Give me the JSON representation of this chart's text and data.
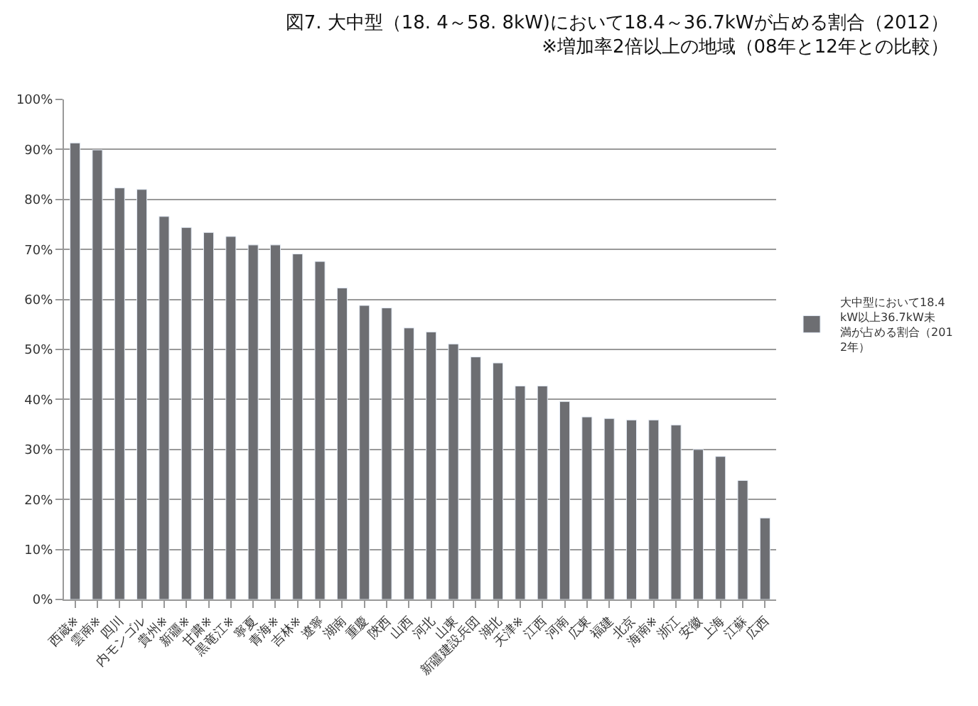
{
  "chart_data": {
    "type": "bar",
    "title": "図7. 大中型（18. 4～58. 8kW)において18.4～36.7kWが占める割合（2012）",
    "subtitle": "※増加率2倍以上の地域（08年と12年との比較）",
    "categories": [
      "西蔵※",
      "雲南※",
      "四川",
      "内モンゴル",
      "貴州※",
      "新疆※",
      "甘粛※",
      "黒竜江※",
      "寧夏",
      "青海※",
      "吉林※",
      "遼寧",
      "湖南",
      "重慶",
      "陝西",
      "山西",
      "河北",
      "山東",
      "新疆建設兵団",
      "湖北",
      "天津※",
      "江西",
      "河南",
      "広東",
      "福建",
      "北京",
      "海南※",
      "浙江",
      "安徽",
      "上海",
      "江蘇",
      "広西"
    ],
    "series": [
      {
        "name": "大中型において18.4kW以上36.7kW未満が占める割合（2012年）",
        "color": "#6d6e72",
        "values": [
          91.3,
          89.9,
          82.3,
          82.0,
          76.6,
          74.4,
          73.4,
          72.6,
          70.9,
          70.9,
          69.1,
          67.6,
          62.3,
          58.8,
          58.3,
          54.3,
          53.5,
          51.1,
          48.5,
          47.3,
          42.7,
          42.7,
          39.6,
          36.5,
          36.2,
          35.9,
          35.9,
          34.9,
          30.0,
          28.6,
          23.8,
          16.3
        ]
      }
    ],
    "ylim": [
      0,
      100
    ],
    "yticks": [
      {
        "value": 0,
        "label": "0%"
      },
      {
        "value": 10,
        "label": "10%"
      },
      {
        "value": 20,
        "label": "20%"
      },
      {
        "value": 30,
        "label": "30%"
      },
      {
        "value": 40,
        "label": "40%"
      },
      {
        "value": 50,
        "label": "50%"
      },
      {
        "value": 60,
        "label": "60%"
      },
      {
        "value": 70,
        "label": "70%"
      },
      {
        "value": 80,
        "label": "80%"
      },
      {
        "value": 90,
        "label": "90%"
      },
      {
        "value": 100,
        "label": "100%"
      }
    ],
    "grid": "y",
    "legend": "right"
  }
}
